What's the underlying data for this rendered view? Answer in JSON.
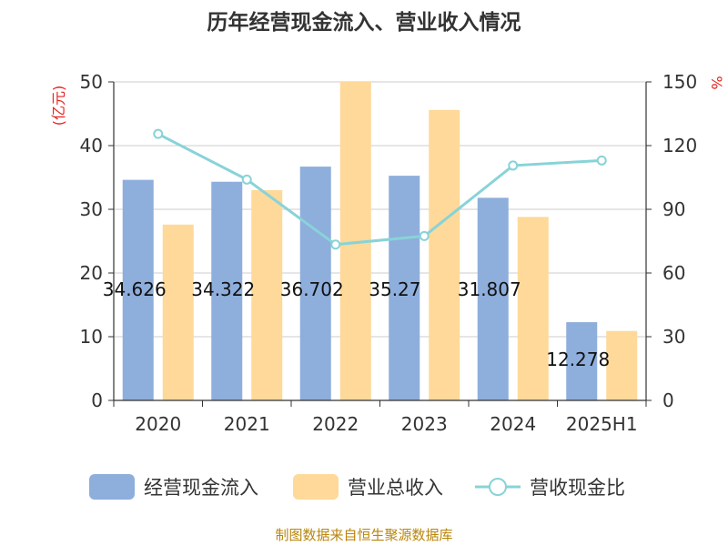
{
  "chart_data": {
    "type": "bar",
    "title": "历年经营现金流入、营业收入情况",
    "categories": [
      "2020",
      "2021",
      "2022",
      "2023",
      "2024",
      "2025H1"
    ],
    "series": [
      {
        "name": "经营现金流入",
        "kind": "bar",
        "axis": "left",
        "color": "#8eaedc",
        "values": [
          34.626,
          34.322,
          36.702,
          35.27,
          31.807,
          12.278
        ],
        "labels": [
          "34.626",
          "34.322",
          "36.702",
          "35.27",
          "31.807",
          "12.278"
        ]
      },
      {
        "name": "营业总收入",
        "kind": "bar",
        "axis": "left",
        "color": "#fed99a",
        "values": [
          27.6,
          33.0,
          50.0,
          45.6,
          28.8,
          10.9
        ]
      },
      {
        "name": "营收现金比",
        "kind": "line",
        "axis": "right",
        "color": "#88d3d8",
        "values": [
          125.5,
          104.0,
          73.4,
          77.4,
          110.6,
          113.0
        ]
      }
    ],
    "y_left": {
      "label": "(亿元)",
      "ylim": [
        0,
        50
      ],
      "ticks": [
        "0",
        "10",
        "20",
        "30",
        "40",
        "50"
      ]
    },
    "y_right": {
      "label": "%",
      "ylim": [
        0,
        150
      ],
      "ticks": [
        "0",
        "30",
        "60",
        "90",
        "120",
        "150"
      ]
    },
    "grid": true,
    "legend": "bottom",
    "source": "制图数据来自恒生聚源数据库"
  }
}
